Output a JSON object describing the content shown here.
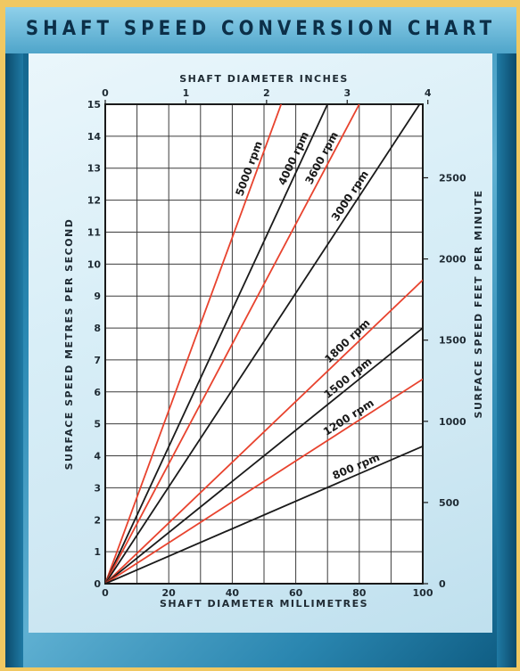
{
  "title": "SHAFT SPEED CONVERSION CHART",
  "colors": {
    "red_series": "#e8432e",
    "black_series": "#1a1a1a",
    "grid": "#3b3b3b",
    "plot_bg": "#ffffff"
  },
  "chart_data": {
    "type": "line",
    "title": "SHAFT SPEED CONVERSION CHART",
    "x_axis_bottom": {
      "label": "SHAFT DIAMETER MILLIMETRES",
      "range": [
        0,
        100
      ],
      "ticks": [
        0,
        20,
        40,
        60,
        80,
        100
      ]
    },
    "x_axis_top": {
      "label": "SHAFT DIAMETER INCHES",
      "range": [
        0,
        4
      ],
      "ticks": [
        0,
        1,
        2,
        3,
        4
      ]
    },
    "y_axis_left": {
      "label": "SURFACE SPEED METRES PER SECOND",
      "range": [
        0,
        15
      ],
      "ticks": [
        0,
        1,
        2,
        3,
        4,
        5,
        6,
        7,
        8,
        9,
        10,
        11,
        12,
        13,
        14,
        15
      ]
    },
    "y_axis_right": {
      "label": "SURFACE SPEED FEET PER MINUTE",
      "ticks": [
        0,
        500,
        1000,
        1500,
        2000,
        2500
      ]
    },
    "grid": true,
    "series": [
      {
        "name": "5000 rpm",
        "color": "red",
        "x": [
          0,
          55.4
        ],
        "y": [
          0,
          15
        ]
      },
      {
        "name": "4000 rpm",
        "color": "black",
        "x": [
          0,
          70
        ],
        "y": [
          0,
          15
        ]
      },
      {
        "name": "3600 rpm",
        "color": "red",
        "x": [
          0,
          80
        ],
        "y": [
          0,
          15
        ]
      },
      {
        "name": "3000 rpm",
        "color": "black",
        "x": [
          0,
          99
        ],
        "y": [
          0,
          15
        ]
      },
      {
        "name": "1800 rpm",
        "color": "red",
        "x": [
          0,
          100
        ],
        "y": [
          0,
          9.5
        ]
      },
      {
        "name": "1500 rpm",
        "color": "black",
        "x": [
          0,
          100
        ],
        "y": [
          0,
          8
        ]
      },
      {
        "name": "1200 rpm",
        "color": "red",
        "x": [
          0,
          100
        ],
        "y": [
          0,
          6.4
        ]
      },
      {
        "name": "800 rpm",
        "color": "black",
        "x": [
          0,
          100
        ],
        "y": [
          0,
          4.3
        ]
      }
    ]
  }
}
